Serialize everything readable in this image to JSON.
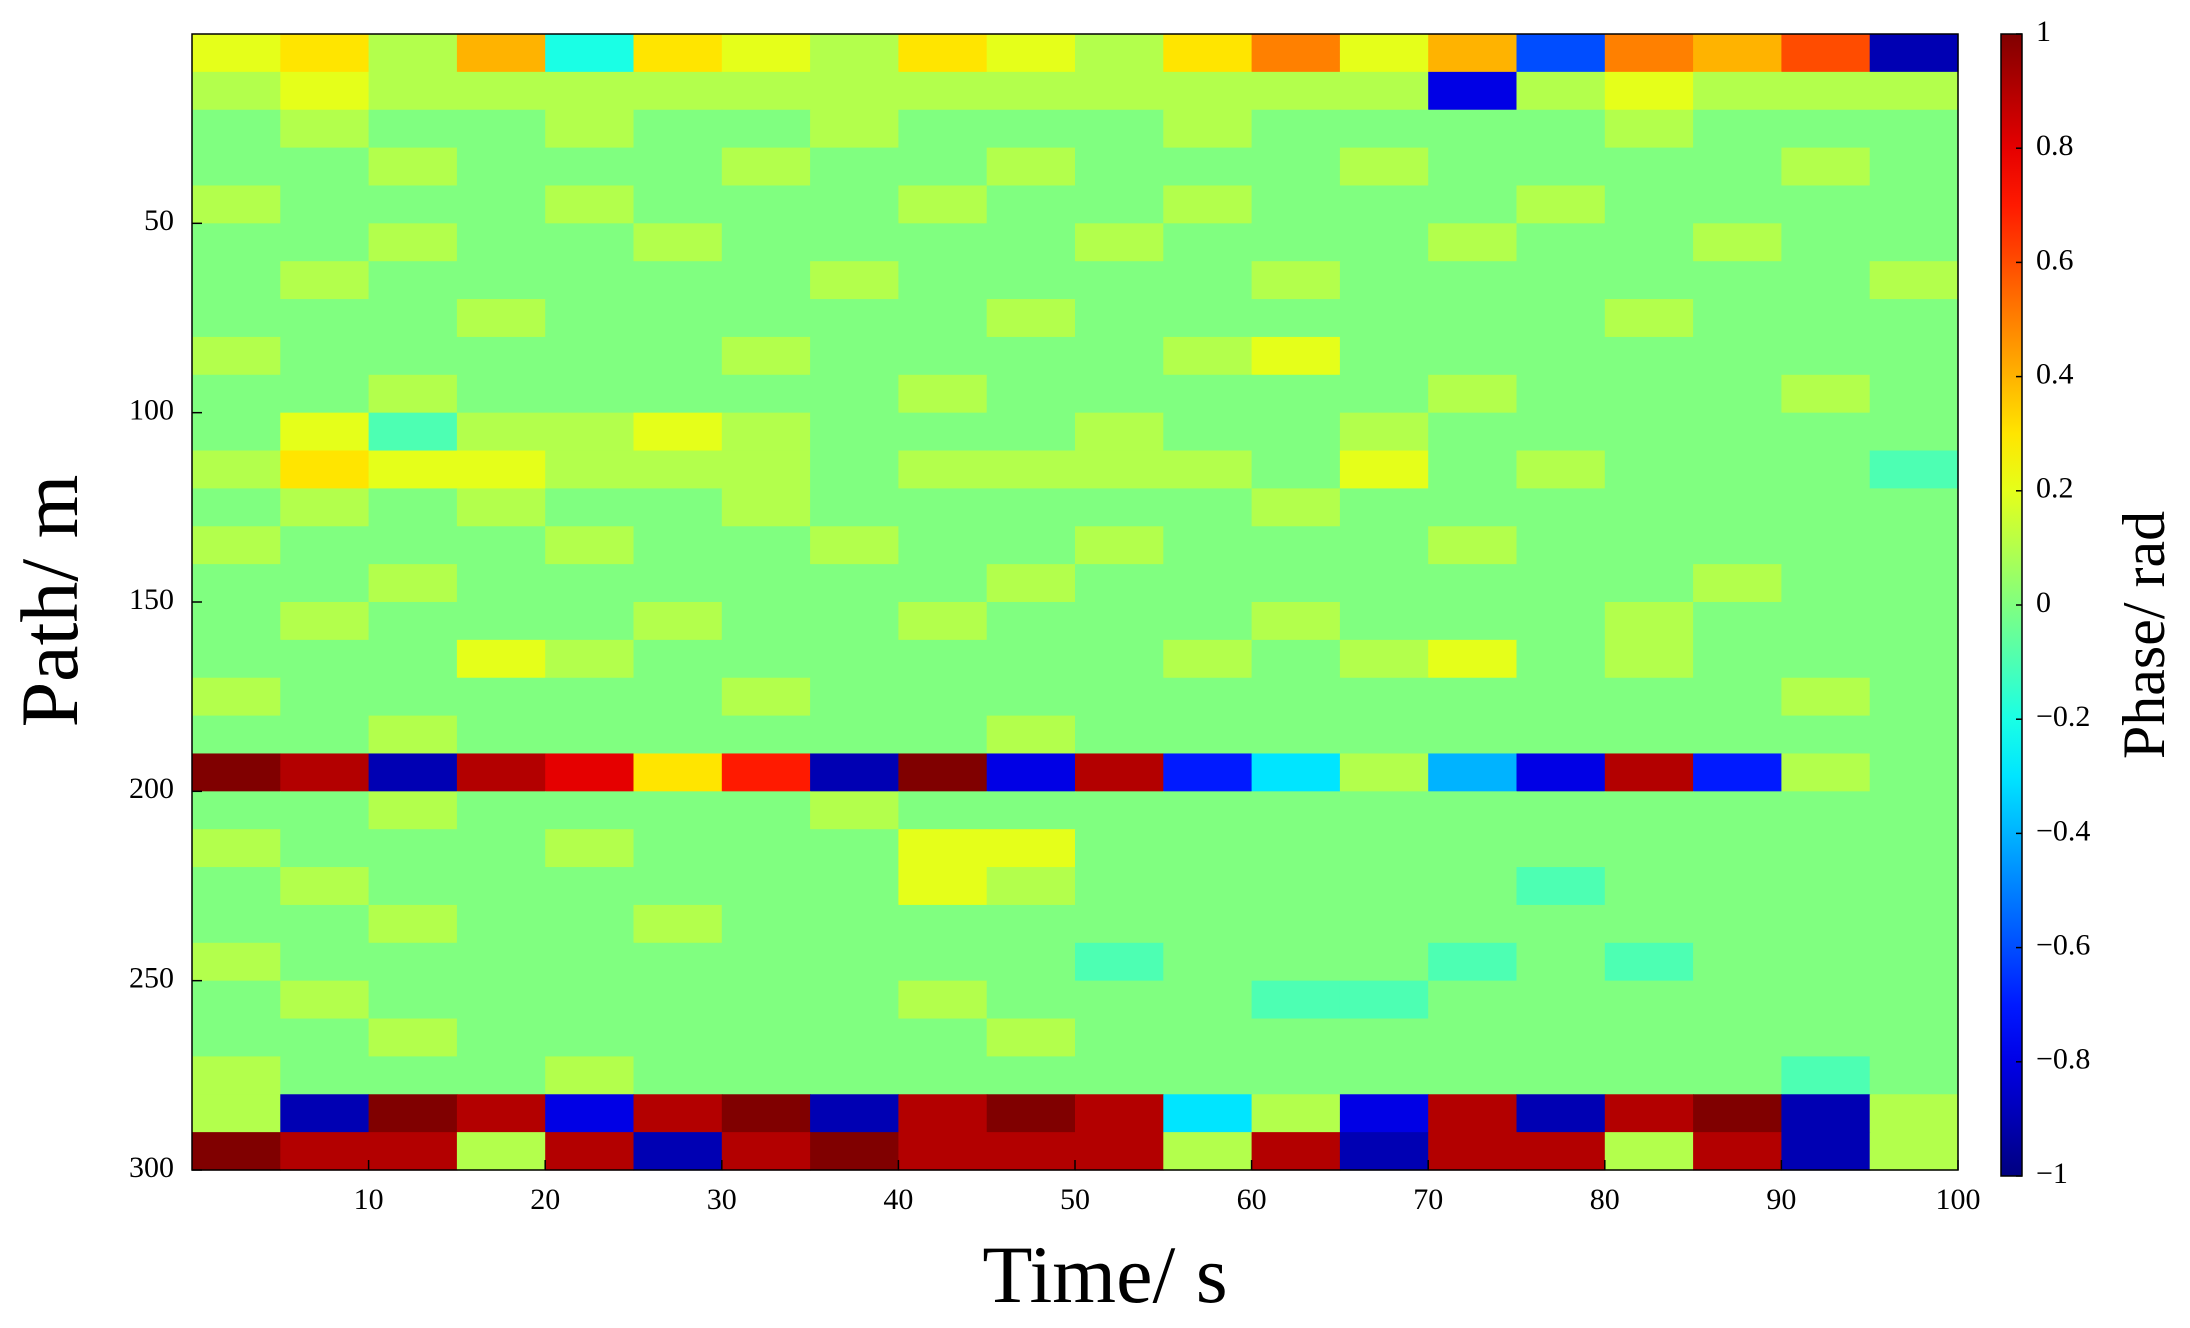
{
  "chart_data": {
    "type": "heatmap",
    "xlabel": "Time/ s",
    "ylabel": "Path/ m",
    "colorbar_label": "Phase/ rad",
    "colormap": "jet",
    "xlim": [
      0,
      100
    ],
    "xticks": [
      10,
      20,
      30,
      40,
      50,
      60,
      70,
      80,
      90,
      100
    ],
    "ylim": [
      0,
      300
    ],
    "yticks": [
      50,
      100,
      150,
      200,
      250,
      300
    ],
    "y_reversed": true,
    "clim": [
      -1,
      1
    ],
    "cticks": [
      1,
      0.8,
      0.6,
      0.4,
      0.2,
      0,
      {
        "value": -0.2,
        "label": "−0.2"
      },
      {
        "value": -0.4,
        "label": "−0.4"
      },
      {
        "value": -0.6,
        "label": "−0.6"
      },
      {
        "value": -0.8,
        "label": "−0.8"
      },
      {
        "value": -1,
        "label": "−1"
      }
    ],
    "z": [
      [
        0.2,
        0.3,
        0.1,
        0.4,
        -0.2,
        0.3,
        0.2,
        0.1,
        0.3,
        0.2,
        0.1,
        0.3,
        0.5,
        0.2,
        0.4,
        -0.6,
        0.5,
        0.4,
        0.6,
        -0.9
      ],
      [
        0.1,
        0.2,
        0.1,
        0.1,
        0.1,
        0.1,
        0.1,
        0.1,
        0.1,
        0.1,
        0.1,
        0.1,
        0.1,
        0.1,
        -0.8,
        0.1,
        0.2,
        0.1,
        0.1,
        0.1
      ],
      [
        0,
        0.1,
        0,
        0,
        0.1,
        0,
        0,
        0.1,
        0,
        0,
        0,
        0.1,
        0,
        0,
        0,
        0,
        0.1,
        0,
        0,
        0
      ],
      [
        0,
        0,
        0.1,
        0,
        0,
        0,
        0.1,
        0,
        0,
        0.1,
        0,
        0,
        0,
        0.1,
        0,
        0,
        0,
        0,
        0.1,
        0
      ],
      [
        0.1,
        0,
        0,
        0,
        0.1,
        0,
        0,
        0,
        0.1,
        0,
        0,
        0.1,
        0,
        0,
        0,
        0.1,
        0,
        0,
        0,
        0
      ],
      [
        0,
        0,
        0.1,
        0,
        0,
        0.1,
        0,
        0,
        0,
        0,
        0.1,
        0,
        0,
        0,
        0.1,
        0,
        0,
        0.1,
        0,
        0
      ],
      [
        0,
        0.1,
        0,
        0,
        0,
        0,
        0,
        0.1,
        0,
        0,
        0,
        0,
        0.1,
        0,
        0,
        0,
        0,
        0,
        0,
        0.1
      ],
      [
        0,
        0,
        0,
        0.1,
        0,
        0,
        0,
        0,
        0,
        0.1,
        0,
        0,
        0,
        0,
        0,
        0,
        0.1,
        0,
        0,
        0
      ],
      [
        0.1,
        0,
        0,
        0,
        0,
        0,
        0.1,
        0,
        0,
        0,
        0,
        0.1,
        0.2,
        0,
        0,
        0,
        0,
        0,
        0,
        0
      ],
      [
        0,
        0,
        0.1,
        0,
        0,
        0,
        0,
        0,
        0.1,
        0,
        0,
        0,
        0,
        0,
        0.1,
        0,
        0,
        0,
        0.1,
        0
      ],
      [
        0,
        0.2,
        -0.1,
        0.1,
        0.1,
        0.2,
        0.1,
        0,
        0,
        0,
        0.1,
        0,
        0,
        0.1,
        0,
        0,
        0,
        0,
        0,
        0
      ],
      [
        0.1,
        0.3,
        0.2,
        0.2,
        0.1,
        0.1,
        0.1,
        0,
        0.1,
        0.1,
        0.1,
        0.1,
        0,
        0.2,
        0,
        0.1,
        0,
        0,
        0,
        -0.1
      ],
      [
        0,
        0.1,
        0,
        0.1,
        0,
        0,
        0.1,
        0,
        0,
        0,
        0,
        0,
        0.1,
        0,
        0,
        0,
        0,
        0,
        0,
        0
      ],
      [
        0.1,
        0,
        0,
        0,
        0.1,
        0,
        0,
        0.1,
        0,
        0,
        0.1,
        0,
        0,
        0,
        0.1,
        0,
        0,
        0,
        0,
        0
      ],
      [
        0,
        0,
        0.1,
        0,
        0,
        0,
        0,
        0,
        0,
        0.1,
        0,
        0,
        0,
        0,
        0,
        0,
        0,
        0.1,
        0,
        0
      ],
      [
        0,
        0.1,
        0,
        0,
        0,
        0.1,
        0,
        0,
        0.1,
        0,
        0,
        0,
        0.1,
        0,
        0,
        0,
        0.1,
        0,
        0,
        0
      ],
      [
        0,
        0,
        0,
        0.2,
        0.1,
        0,
        0,
        0,
        0,
        0,
        0,
        0.1,
        0,
        0.1,
        0.2,
        0,
        0.1,
        0,
        0,
        0
      ],
      [
        0.1,
        0,
        0,
        0,
        0,
        0,
        0.1,
        0,
        0,
        0,
        0,
        0,
        0,
        0,
        0,
        0,
        0,
        0,
        0.1,
        0
      ],
      [
        0,
        0,
        0.1,
        0,
        0,
        0,
        0,
        0,
        0,
        0.1,
        0,
        0,
        0,
        0,
        0,
        0,
        0,
        0,
        0,
        0
      ],
      [
        1,
        0.9,
        -0.9,
        0.9,
        0.8,
        0.3,
        0.7,
        -0.9,
        1,
        -0.8,
        0.9,
        -0.7,
        -0.3,
        0.1,
        -0.4,
        -0.8,
        0.9,
        -0.7,
        0.1,
        0
      ],
      [
        0,
        0,
        0.1,
        0,
        0,
        0,
        0,
        0.1,
        0,
        0,
        0,
        0,
        0,
        0,
        0,
        0,
        0,
        0,
        0,
        0
      ],
      [
        0.1,
        0,
        0,
        0,
        0.1,
        0,
        0,
        0,
        0.2,
        0.2,
        0,
        0,
        0,
        0,
        0,
        0,
        0,
        0,
        0,
        0
      ],
      [
        0,
        0.1,
        0,
        0,
        0,
        0,
        0,
        0,
        0.2,
        0.1,
        0,
        0,
        0,
        0,
        0,
        -0.1,
        0,
        0,
        0,
        0
      ],
      [
        0,
        0,
        0.1,
        0,
        0,
        0.1,
        0,
        0,
        0,
        0,
        0,
        0,
        0,
        0,
        0,
        0,
        0,
        0,
        0,
        0
      ],
      [
        0.1,
        0,
        0,
        0,
        0,
        0,
        0,
        0,
        0,
        0,
        -0.1,
        0,
        0,
        0,
        -0.1,
        0,
        -0.1,
        0,
        0,
        0
      ],
      [
        0,
        0.1,
        0,
        0,
        0,
        0,
        0,
        0,
        0.1,
        0,
        0,
        0,
        -0.1,
        -0.1,
        0,
        0,
        0,
        0,
        0,
        0
      ],
      [
        0,
        0,
        0.1,
        0,
        0,
        0,
        0,
        0,
        0,
        0.1,
        0,
        0,
        0,
        0,
        0,
        0,
        0,
        0,
        0,
        0
      ],
      [
        0.1,
        0,
        0,
        0,
        0.1,
        0,
        0,
        0,
        0,
        0,
        0,
        0,
        0,
        0,
        0,
        0,
        0,
        0,
        -0.1,
        0
      ],
      [
        0.1,
        -0.9,
        1,
        0.9,
        -0.8,
        0.9,
        1,
        -0.9,
        0.9,
        1,
        0.9,
        -0.3,
        0.1,
        -0.8,
        0.9,
        -0.9,
        0.9,
        1,
        -0.9,
        0.1
      ],
      [
        1,
        0.9,
        0.9,
        0.1,
        0.9,
        -0.9,
        0.9,
        1,
        0.9,
        0.9,
        0.9,
        0.1,
        0.9,
        -0.9,
        0.9,
        0.9,
        0.1,
        0.9,
        -0.9,
        0.1
      ]
    ]
  }
}
